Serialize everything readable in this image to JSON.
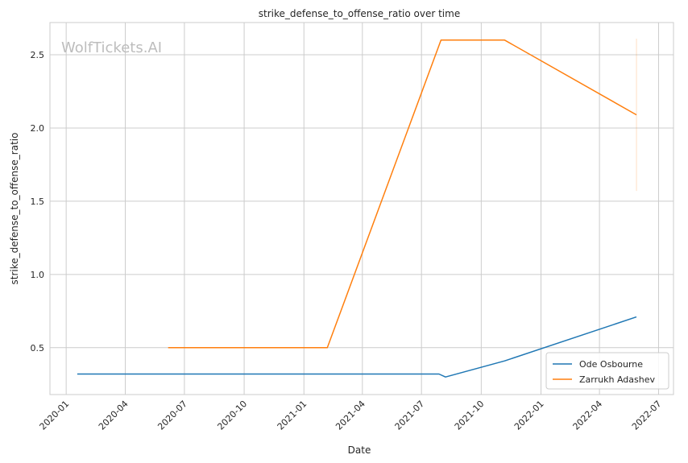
{
  "chart_data": {
    "type": "line",
    "title": "strike_defense_to_offense_ratio over time",
    "xlabel": "Date",
    "ylabel": "strike_defense_to_offense_ratio",
    "watermark": "WolfTickets.AI",
    "x_ticks": [
      "2020-01",
      "2020-04",
      "2020-07",
      "2020-10",
      "2021-01",
      "2021-04",
      "2021-07",
      "2021-10",
      "2022-01",
      "2022-04",
      "2022-07"
    ],
    "y_ticks": [
      "0.5",
      "1.0",
      "1.5",
      "2.0",
      "2.5"
    ],
    "xlim": [
      "2019-12-07",
      "2022-07-24"
    ],
    "ylim": [
      0.18,
      2.72
    ],
    "grid": true,
    "legend_position": "bottom-right",
    "series": [
      {
        "name": "Ode Osbourne",
        "color": "#1f77b4",
        "points": [
          {
            "x": "2020-01-18",
            "y": 0.32
          },
          {
            "x": "2021-07-28",
            "y": 0.32
          },
          {
            "x": "2021-08-07",
            "y": 0.3
          },
          {
            "x": "2021-11-06",
            "y": 0.41
          },
          {
            "x": "2022-05-28",
            "y": 0.71
          }
        ]
      },
      {
        "name": "Zarrukh Adashev",
        "color": "#ff7f0e",
        "points": [
          {
            "x": "2020-06-06",
            "y": 0.5
          },
          {
            "x": "2021-02-06",
            "y": 0.5
          },
          {
            "x": "2021-07-31",
            "y": 2.6
          },
          {
            "x": "2021-11-06",
            "y": 2.6
          },
          {
            "x": "2022-05-28",
            "y": 2.09
          }
        ]
      }
    ],
    "band": {
      "x": "2022-05-28",
      "y_low": 1.57,
      "y_high": 2.61,
      "color": "#ff7f0e"
    }
  }
}
